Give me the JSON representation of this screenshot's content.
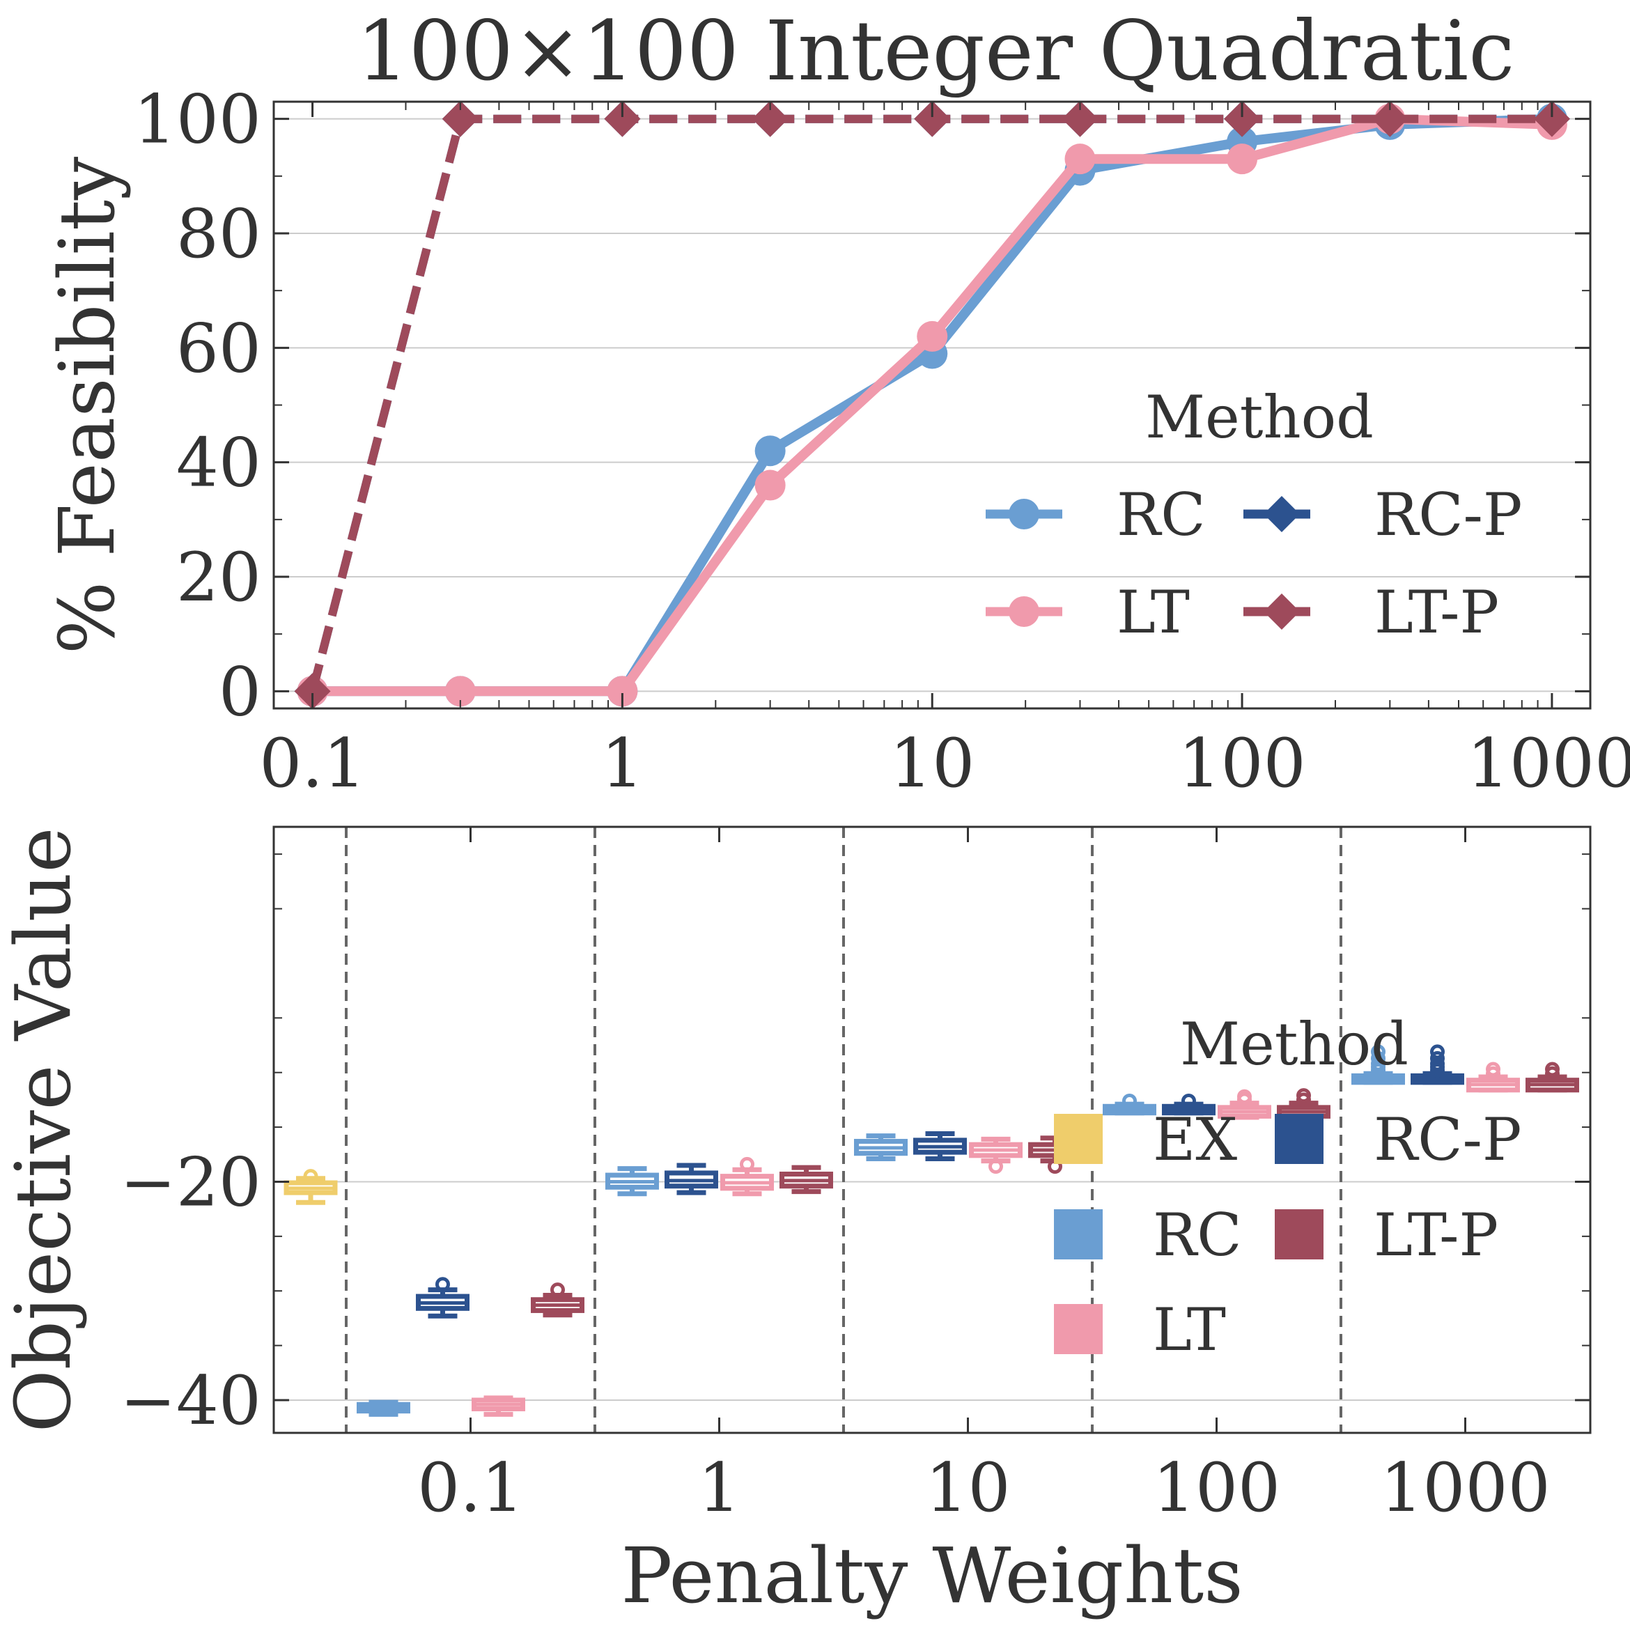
{
  "colors": {
    "RC": "#6a9ed2",
    "RC-P": "#2c528f",
    "LT": "#f09aac",
    "LT-P": "#9e4a5b",
    "EX": "#efcd6b"
  },
  "chart_data": [
    {
      "type": "line",
      "title": "100×100 Integer Quadratic",
      "xlabel": "",
      "ylabel": "% Feasibility",
      "xscale": "log",
      "xlim": [
        0.075,
        1330
      ],
      "ylim": [
        -3,
        103
      ],
      "x_tick_labels": [
        "0.1",
        "1",
        "10",
        "100",
        "1000"
      ],
      "y_tick_labels": [
        "0",
        "20",
        "40",
        "60",
        "80",
        "100"
      ],
      "grid": "horizontal",
      "legend_title": "Method",
      "legend_placement": "center-right",
      "x": [
        0.1,
        0.3,
        1,
        3,
        10,
        30,
        100,
        300,
        1000
      ],
      "series": [
        {
          "name": "RC",
          "marker": "circle",
          "linestyle": "solid",
          "values": [
            0,
            0,
            0,
            42,
            59,
            91,
            96,
            99,
            100
          ]
        },
        {
          "name": "RC-P",
          "marker": "diamond",
          "linestyle": "dashed",
          "values": [
            0,
            100,
            100,
            100,
            100,
            100,
            100,
            100,
            100
          ]
        },
        {
          "name": "LT",
          "marker": "circle",
          "linestyle": "solid",
          "values": [
            0,
            0,
            0,
            36,
            62,
            93,
            93,
            100,
            99
          ]
        },
        {
          "name": "LT-P",
          "marker": "diamond",
          "linestyle": "dashed",
          "values": [
            0,
            100,
            100,
            100,
            100,
            100,
            100,
            100,
            100
          ]
        }
      ]
    },
    {
      "type": "box",
      "title": "",
      "xlabel": "Penalty Weights",
      "ylabel": "Objective Value",
      "ylim": [
        -43,
        12.5
      ],
      "y_ticks": [
        -20,
        -40
      ],
      "y_tick_labels": [
        "−20",
        "−40"
      ],
      "categories": [
        "0.1",
        "1",
        "10",
        "100",
        "1000"
      ],
      "grid": "horizontal",
      "legend_title": "Method",
      "legend_placement": "center-right",
      "legend_order": [
        "EX",
        "RC",
        "LT",
        "RC-P",
        "LT-P"
      ],
      "reference": {
        "name": "EX",
        "q1": -21,
        "median": -20.6,
        "q3": -20.1,
        "whisker_low": -21.9,
        "whisker_high": -19.7,
        "outliers": [
          -19.5
        ]
      },
      "groups": [
        {
          "category": "0.1",
          "boxes": [
            {
              "name": "RC",
              "q1": -41.0,
              "median": -40.7,
              "q3": -40.4,
              "whisker_low": -41.3,
              "whisker_high": -40.2,
              "outliers": []
            },
            {
              "name": "RC-P",
              "q1": -31.6,
              "median": -31.1,
              "q3": -30.5,
              "whisker_low": -32.3,
              "whisker_high": -29.9,
              "outliers": [
                -29.4
              ]
            },
            {
              "name": "LT",
              "q1": -40.8,
              "median": -40.4,
              "q3": -40.0,
              "whisker_low": -41.3,
              "whisker_high": -39.8,
              "outliers": []
            },
            {
              "name": "LT-P",
              "q1": -31.8,
              "median": -31.3,
              "q3": -30.8,
              "whisker_low": -32.2,
              "whisker_high": -30.4,
              "outliers": [
                -29.9
              ]
            }
          ]
        },
        {
          "category": "1",
          "boxes": [
            {
              "name": "RC",
              "q1": -20.5,
              "median": -20.0,
              "q3": -19.4,
              "whisker_low": -21.1,
              "whisker_high": -18.8,
              "outliers": []
            },
            {
              "name": "RC-P",
              "q1": -20.4,
              "median": -19.9,
              "q3": -19.2,
              "whisker_low": -21.0,
              "whisker_high": -18.5,
              "outliers": []
            },
            {
              "name": "LT",
              "q1": -20.6,
              "median": -20.1,
              "q3": -19.5,
              "whisker_low": -21.1,
              "whisker_high": -18.9,
              "outliers": [
                -18.4
              ]
            },
            {
              "name": "LT-P",
              "q1": -20.4,
              "median": -19.9,
              "q3": -19.3,
              "whisker_low": -20.9,
              "whisker_high": -18.7,
              "outliers": []
            }
          ]
        },
        {
          "category": "10",
          "boxes": [
            {
              "name": "RC",
              "q1": -17.4,
              "median": -16.9,
              "q3": -16.3,
              "whisker_low": -17.9,
              "whisker_high": -15.8,
              "outliers": []
            },
            {
              "name": "RC-P",
              "q1": -17.3,
              "median": -16.8,
              "q3": -16.2,
              "whisker_low": -17.9,
              "whisker_high": -15.6,
              "outliers": []
            },
            {
              "name": "LT",
              "q1": -17.6,
              "median": -17.1,
              "q3": -16.6,
              "whisker_low": -18.1,
              "whisker_high": -16.1,
              "outliers": [
                -18.6
              ]
            },
            {
              "name": "LT-P",
              "q1": -17.6,
              "median": -17.1,
              "q3": -16.6,
              "whisker_low": -18.1,
              "whisker_high": -16.0,
              "outliers": [
                -18.6
              ]
            }
          ]
        },
        {
          "category": "100",
          "boxes": [
            {
              "name": "RC",
              "q1": -13.7,
              "median": -13.4,
              "q3": -13.1,
              "whisker_low": -13.7,
              "whisker_high": -12.9,
              "outliers": [
                -12.6
              ]
            },
            {
              "name": "RC-P",
              "q1": -13.7,
              "median": -13.4,
              "q3": -13.1,
              "whisker_low": -13.7,
              "whisker_high": -12.9,
              "outliers": [
                -12.6
              ]
            },
            {
              "name": "LT",
              "q1": -14.0,
              "median": -13.6,
              "q3": -13.2,
              "whisker_low": -14.1,
              "whisker_high": -12.8,
              "outliers": [
                -12.5,
                -12.2
              ]
            },
            {
              "name": "LT-P",
              "q1": -14.0,
              "median": -13.6,
              "q3": -13.2,
              "whisker_low": -14.1,
              "whisker_high": -12.8,
              "outliers": [
                -12.5,
                -12.1
              ]
            }
          ]
        },
        {
          "category": "1000",
          "boxes": [
            {
              "name": "RC",
              "q1": -10.9,
              "median": -10.6,
              "q3": -10.3,
              "whisker_low": -10.9,
              "whisker_high": -10.1,
              "outliers": [
                -9.8,
                -9.5,
                -9.2,
                -8.7,
                -8.1
              ]
            },
            {
              "name": "RC-P",
              "q1": -10.9,
              "median": -10.6,
              "q3": -10.3,
              "whisker_low": -10.9,
              "whisker_high": -10.1,
              "outliers": [
                -9.8,
                -9.5,
                -9.2,
                -8.7,
                -8.1
              ]
            },
            {
              "name": "LT",
              "q1": -11.6,
              "median": -11.1,
              "q3": -10.7,
              "whisker_low": -11.6,
              "whisker_high": -10.4,
              "outliers": [
                -10.1,
                -9.7
              ]
            },
            {
              "name": "LT-P",
              "q1": -11.6,
              "median": -11.1,
              "q3": -10.7,
              "whisker_low": -11.6,
              "whisker_high": -10.4,
              "outliers": [
                -10.1,
                -9.7
              ]
            }
          ]
        }
      ]
    }
  ]
}
